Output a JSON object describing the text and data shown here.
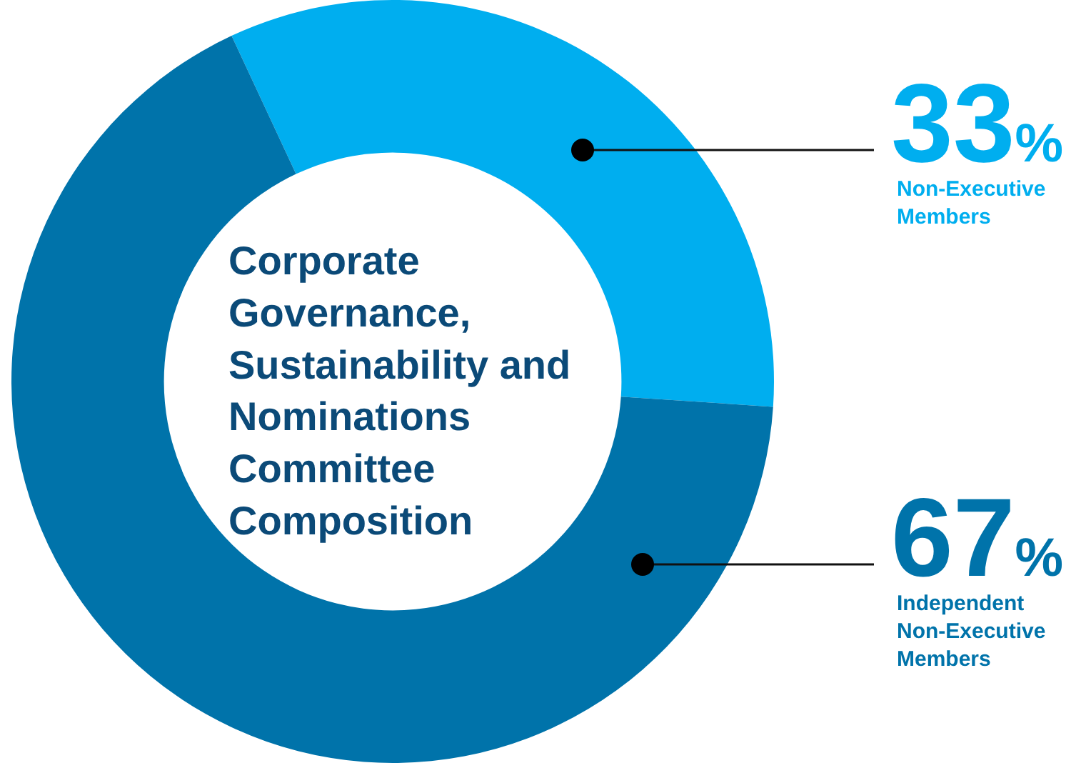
{
  "chart_data": {
    "type": "donut",
    "title": "Corporate\nGovernance,\nSustainability and\nNominations\nCommittee\nComposition",
    "categories": [
      "Non-Executive\nMembers",
      "Independent\nNon-Executive\nMembers"
    ],
    "values": [
      33,
      67
    ],
    "colors": [
      "#00aeef",
      "#0073aa"
    ],
    "value_labels": [
      "33%",
      "67%"
    ],
    "legend": false
  }
}
